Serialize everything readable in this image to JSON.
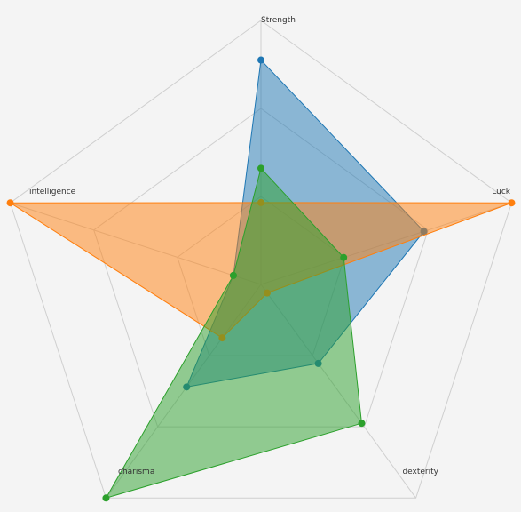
{
  "chart_data": {
    "type": "radar",
    "axes": [
      "Strength",
      "Luck",
      "dexterity",
      "charisma",
      "intelligence"
    ],
    "max": 10,
    "grid_levels": 3,
    "series": [
      {
        "color": "#1f77b4",
        "values": [
          8.5,
          6.5,
          3.7,
          4.8,
          1.1
        ]
      },
      {
        "color": "#ff7f0e",
        "values": [
          3.1,
          10.0,
          0.4,
          2.5,
          10.0
        ]
      },
      {
        "color": "#2ca02c",
        "values": [
          4.4,
          3.3,
          6.5,
          10.0,
          1.1
        ]
      }
    ]
  }
}
